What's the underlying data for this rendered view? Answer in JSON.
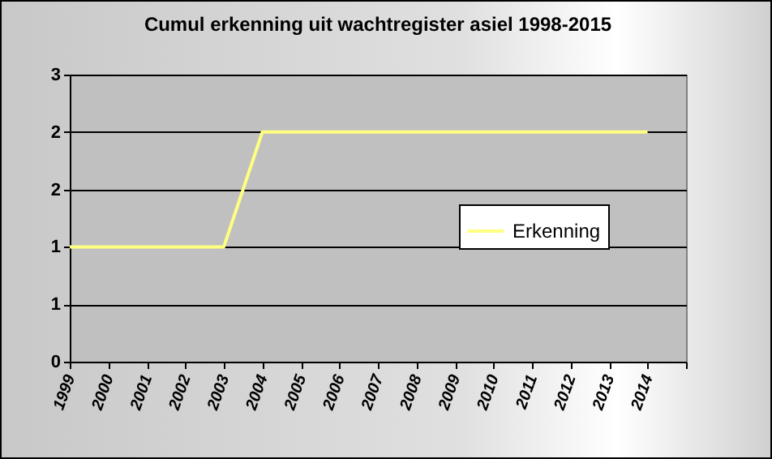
{
  "chart_data": {
    "type": "line",
    "title": "Cumul erkenning uit wachtregister asiel 1998-2015",
    "x": [
      1999,
      2000,
      2001,
      2002,
      2003,
      2004,
      2005,
      2006,
      2007,
      2008,
      2009,
      2010,
      2011,
      2012,
      2013,
      2014
    ],
    "series": [
      {
        "name": "Erkenning",
        "color": "#ffff80",
        "values": [
          1.2,
          1.2,
          1.2,
          1.2,
          1.2,
          2.4,
          2.4,
          2.4,
          2.4,
          2.4,
          2.4,
          2.4,
          2.4,
          2.4,
          2.4,
          2.4
        ]
      }
    ],
    "xlim": [
      1999,
      2015
    ],
    "xticks": [
      1999,
      2000,
      2001,
      2002,
      2003,
      2004,
      2005,
      2006,
      2007,
      2008,
      2009,
      2010,
      2011,
      2012,
      2013,
      2014,
      {
        "value": 2015,
        "label": null
      }
    ],
    "ylim": [
      0,
      3
    ],
    "yticks": [
      0,
      {
        "value": 0.6,
        "label": "1"
      },
      {
        "value": 1.2,
        "label": "1"
      },
      {
        "value": 1.8,
        "label": "2"
      },
      {
        "value": 2.4,
        "label": "2"
      },
      3
    ],
    "grid": "y",
    "legend": "right",
    "marker": "none",
    "line_style": "solid"
  }
}
